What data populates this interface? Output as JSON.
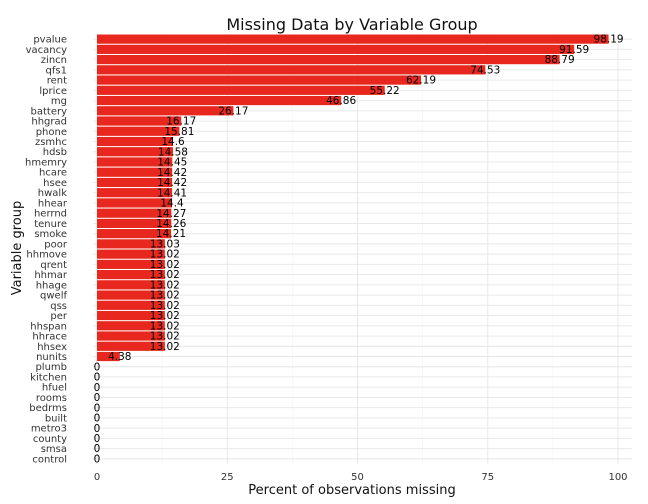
{
  "chart_data": {
    "type": "bar",
    "orientation": "horizontal",
    "title": "Missing Data by Variable Group",
    "xlabel": "Percent of observations missing",
    "ylabel": "Variable group",
    "xlim": [
      0,
      100
    ],
    "xticks": [
      "0",
      "25",
      "50",
      "75",
      "100"
    ],
    "grid": true,
    "bar_color": "#E8281E",
    "categories": [
      "pvalue",
      "vacancy",
      "zincn",
      "qfs1",
      "rent",
      "lprice",
      "mg",
      "battery",
      "hhgrad",
      "phone",
      "zsmhc",
      "hdsb",
      "hmemry",
      "hcare",
      "hsee",
      "hwalk",
      "hhear",
      "herrnd",
      "tenure",
      "smoke",
      "poor",
      "hhmove",
      "qrent",
      "hhmar",
      "hhage",
      "qwelf",
      "qss",
      "per",
      "hhspan",
      "hhrace",
      "hhsex",
      "nunits",
      "plumb",
      "kitchen",
      "hfuel",
      "rooms",
      "bedrms",
      "built",
      "metro3",
      "county",
      "smsa",
      "control"
    ],
    "values": [
      98.19,
      91.59,
      88.79,
      74.53,
      62.19,
      55.22,
      46.86,
      26.17,
      16.17,
      15.81,
      14.6,
      14.58,
      14.45,
      14.42,
      14.42,
      14.41,
      14.4,
      14.27,
      14.26,
      14.21,
      13.03,
      13.02,
      13.02,
      13.02,
      13.02,
      13.02,
      13.02,
      13.02,
      13.02,
      13.02,
      13.02,
      4.38,
      0,
      0,
      0,
      0,
      0,
      0,
      0,
      0,
      0,
      0
    ],
    "data_labels": [
      "98.19",
      "91.59",
      "88.79",
      "74.53",
      "62.19",
      "55.22",
      "46.86",
      "26.17",
      "16.17",
      "15.81",
      "14.6",
      "14.58",
      "14.45",
      "14.42",
      "14.42",
      "14.41",
      "14.4",
      "14.27",
      "14.26",
      "14.21",
      "13.03",
      "13.02",
      "13.02",
      "13.02",
      "13.02",
      "13.02",
      "13.02",
      "13.02",
      "13.02",
      "13.02",
      "13.02",
      "4.38",
      "0",
      "0",
      "0",
      "0",
      "0",
      "0",
      "0",
      "0",
      "0",
      "0"
    ]
  }
}
